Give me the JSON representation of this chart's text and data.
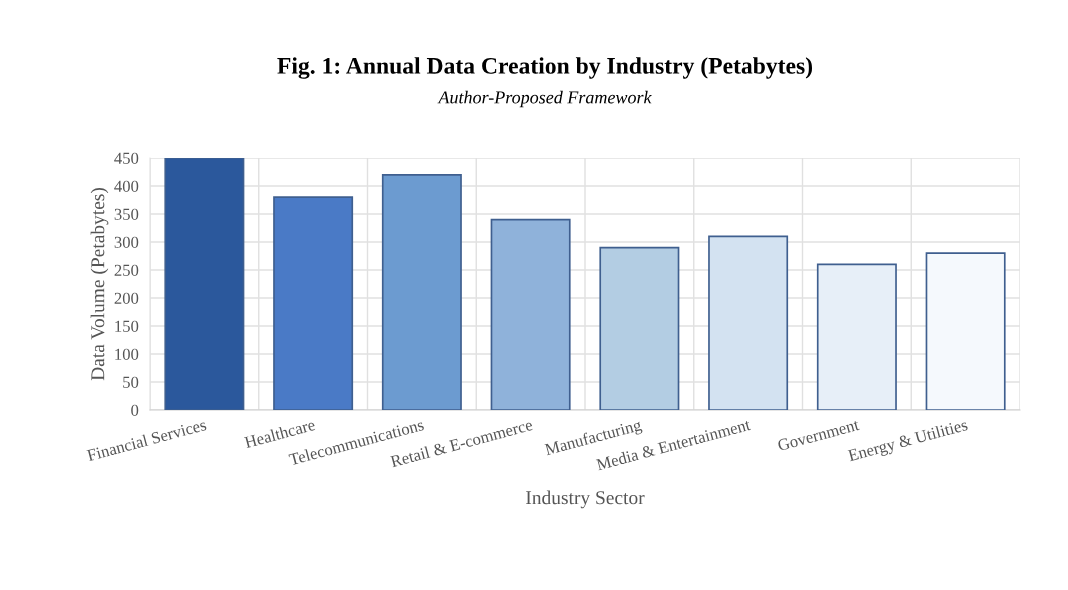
{
  "chart_data": {
    "type": "bar",
    "title": "Fig. 1: Annual Data Creation by Industry (Petabytes)",
    "subtitle": "Author-Proposed Framework",
    "xlabel": "Industry Sector",
    "ylabel": "Data Volume (Petabytes)",
    "categories": [
      "Financial Services",
      "Healthcare",
      "Telecommunications",
      "Retail & E-commerce",
      "Manufacturing",
      "Media & Entertainment",
      "Government",
      "Energy & Utilities"
    ],
    "values": [
      450,
      380,
      420,
      340,
      290,
      310,
      260,
      280
    ],
    "colors": [
      "#2b589c",
      "#4a7ac6",
      "#6c9bd0",
      "#8fb2da",
      "#b3cde3",
      "#d3e2f1",
      "#e7eff8",
      "#f5f9fd"
    ],
    "ylim": [
      0,
      450
    ],
    "yticks": [
      0,
      50,
      100,
      150,
      200,
      250,
      300,
      350,
      400,
      450
    ],
    "grid": true
  }
}
